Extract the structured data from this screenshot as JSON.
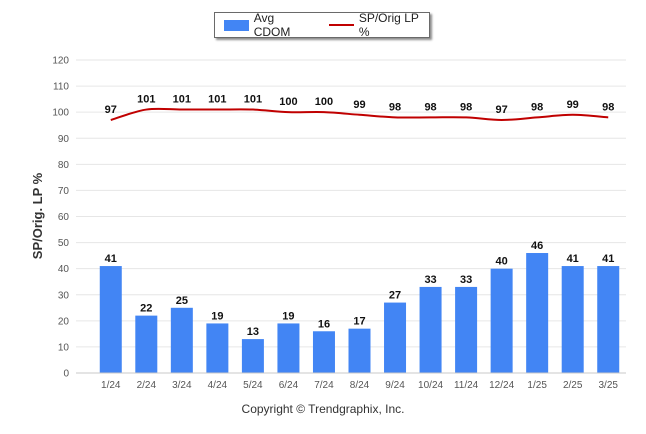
{
  "legend": {
    "bar_label": "Avg CDOM",
    "line_label": "SP/Orig LP %"
  },
  "footer": {
    "copyright": "Copyright © Trendgraphix, Inc."
  },
  "colors": {
    "bar": "#4285f4",
    "line": "#c00000",
    "grid": "#e6e6e6",
    "axis_text": "#555555"
  },
  "chart_data": {
    "type": "bar",
    "ylabel": "SP/Orig. LP %",
    "xlabel": "",
    "ylim": [
      0,
      120
    ],
    "yticks": [
      0,
      10,
      20,
      30,
      40,
      50,
      60,
      70,
      80,
      90,
      100,
      110,
      120
    ],
    "grid": true,
    "legend_position": "top-center",
    "categories": [
      "1/24",
      "2/24",
      "3/24",
      "4/24",
      "5/24",
      "6/24",
      "7/24",
      "8/24",
      "9/24",
      "10/24",
      "11/24",
      "12/24",
      "1/25",
      "2/25",
      "3/25"
    ],
    "series": [
      {
        "name": "Avg CDOM",
        "type": "bar",
        "values": [
          41,
          22,
          25,
          19,
          13,
          19,
          16,
          17,
          27,
          33,
          33,
          40,
          46,
          41,
          41
        ]
      },
      {
        "name": "SP/Orig LP %",
        "type": "line",
        "values": [
          97,
          101,
          101,
          101,
          101,
          100,
          100,
          99,
          98,
          98,
          98,
          97,
          98,
          99,
          98
        ]
      }
    ]
  }
}
